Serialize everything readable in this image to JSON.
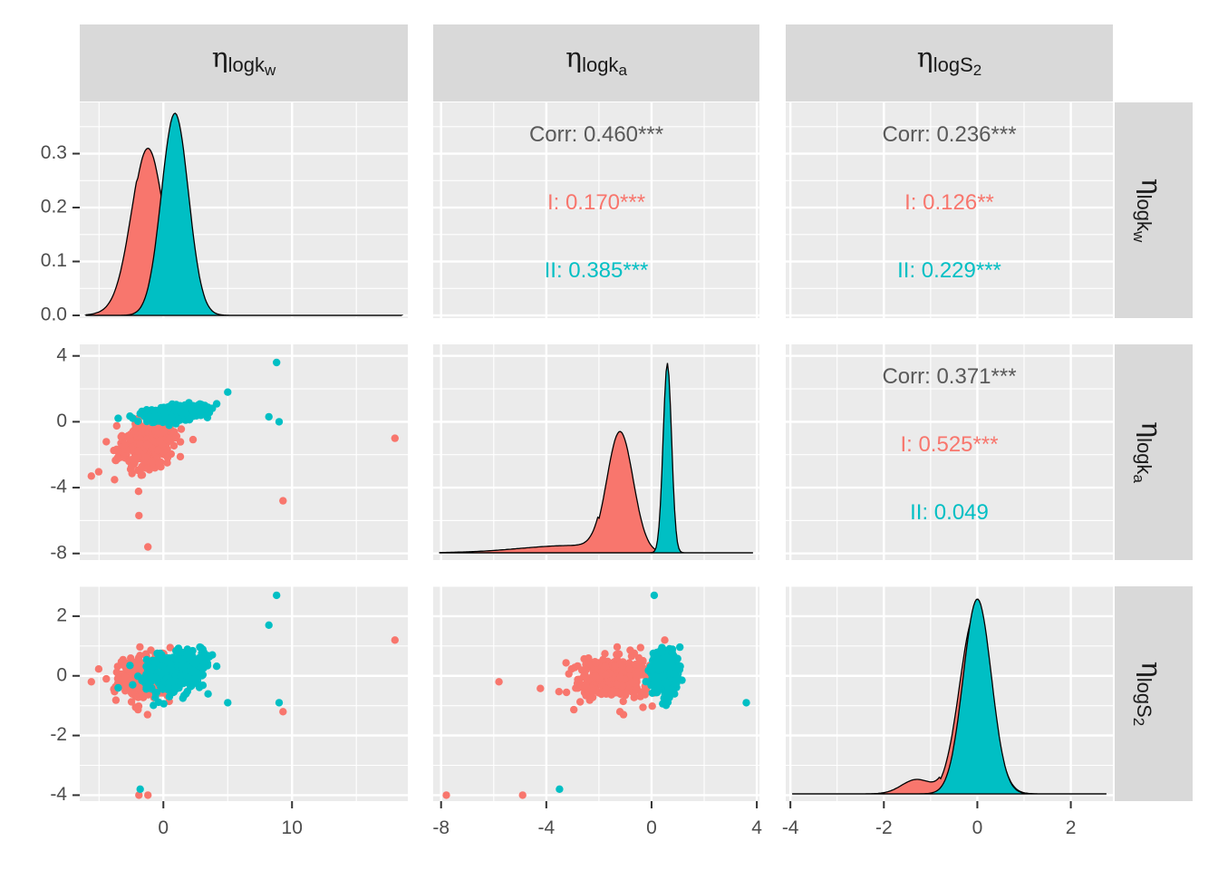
{
  "chart_data": {
    "type": "pairs",
    "variables": [
      {
        "label": "η",
        "sub": "logk",
        "subsub": "w"
      },
      {
        "label": "η",
        "sub": "logk",
        "subsub": "a"
      },
      {
        "label": "η",
        "sub": "logS",
        "subsub": "2"
      }
    ],
    "groups": [
      {
        "name": "I",
        "color": "#F8766D"
      },
      {
        "name": "II",
        "color": "#00BFC4"
      }
    ],
    "axes": {
      "x": [
        {
          "lim": [
            -6.5,
            19
          ],
          "ticks": [
            0,
            10
          ],
          "tick_labels": [
            "0",
            "10"
          ]
        },
        {
          "lim": [
            -8.3,
            4.1
          ],
          "ticks": [
            -8,
            -4,
            0,
            4
          ],
          "tick_labels": [
            "-8",
            "-4",
            "0",
            "4"
          ]
        },
        {
          "lim": [
            -4.1,
            2.9
          ],
          "ticks": [
            -4,
            -2,
            0,
            2
          ],
          "tick_labels": [
            "-4",
            "-2",
            "0",
            "2"
          ]
        }
      ],
      "y": [
        {
          "lim": [
            -0.005,
            0.395
          ],
          "ticks": [
            0.0,
            0.1,
            0.2,
            0.3
          ],
          "tick_labels": [
            "0.0",
            "0.1",
            "0.2",
            "0.3"
          ]
        },
        {
          "lim": [
            -8.4,
            4.7
          ],
          "ticks": [
            -8,
            -4,
            0,
            4
          ],
          "tick_labels": [
            "-8",
            "-4",
            "0",
            "4"
          ]
        },
        {
          "lim": [
            -4.2,
            3.0
          ],
          "ticks": [
            -4,
            -2,
            0,
            2
          ],
          "tick_labels": [
            "-4",
            "-2",
            "0",
            "2"
          ]
        }
      ]
    },
    "correlations": [
      {
        "row": 0,
        "col": 1,
        "overall": "Corr: 0.460***",
        "I": "I: 0.170***",
        "II": "II: 0.385***"
      },
      {
        "row": 0,
        "col": 2,
        "overall": "Corr: 0.236***",
        "I": "I: 0.126**",
        "II": "II: 0.229***"
      },
      {
        "row": 1,
        "col": 2,
        "overall": "Corr: 0.371***",
        "I": "I: 0.525***",
        "II": "II: 0.049"
      }
    ],
    "densities": [
      {
        "var": 0,
        "I": {
          "mean": -1.2,
          "sd": 1.25,
          "peak": 0.31
        },
        "II": {
          "mean": 0.9,
          "sd": 1.05,
          "peak": 0.375
        }
      },
      {
        "var": 1,
        "I": {
          "mean": -1.2,
          "sd": 0.5,
          "peak": 0.62
        },
        "II": {
          "mean": 0.6,
          "sd": 0.16,
          "peak": 0.97
        }
      },
      {
        "var": 2,
        "I": {
          "mean": -0.05,
          "sd": 0.33,
          "peak": 0.92
        },
        "II": {
          "mean": 0.0,
          "sd": 0.3,
          "peak": 1.0
        }
      }
    ],
    "scatter_outliers": {
      "II": [
        [
          8.8,
          3.6,
          0.1,
          2.7
        ],
        [
          8.2,
          0.3,
          8.2,
          1.7
        ],
        [
          9.0,
          0.0,
          8.8,
          -0.9
        ],
        [
          -1.8,
          0.5,
          -3.5,
          -3.8
        ],
        [
          5.0,
          1.8,
          3.6,
          -0.9
        ]
      ],
      "I": [
        [
          18.0,
          -1.0,
          0.5,
          1.2
        ],
        [
          9.3,
          -4.8,
          -1.2,
          -1.2
        ],
        [
          -1.2,
          -7.6,
          -7.8,
          -4.0
        ],
        [
          -1.9,
          -5.7,
          -4.9,
          -4.0
        ],
        [
          -5.6,
          -3.3,
          -5.8,
          -0.2
        ]
      ]
    }
  }
}
